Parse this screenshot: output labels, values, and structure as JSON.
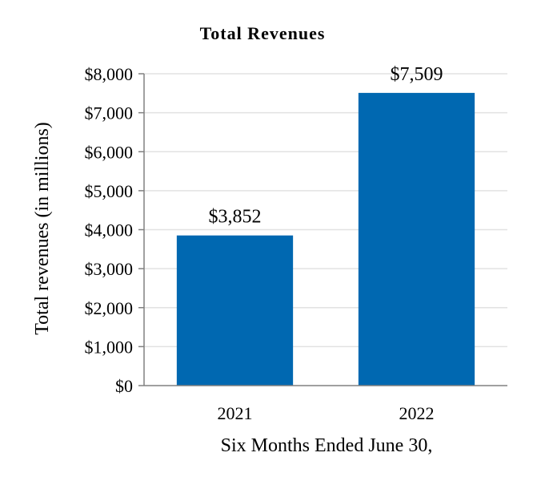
{
  "chart_data": {
    "type": "bar",
    "title": "Total Revenues",
    "xlabel": "Six Months Ended June 30,",
    "ylabel": "Total revenues (in millions)",
    "categories": [
      "2021",
      "2022"
    ],
    "values": [
      3852,
      7509
    ],
    "data_labels": [
      "$3,852",
      "$7,509"
    ],
    "ylim": [
      0,
      8000
    ],
    "y_ticks": [
      0,
      1000,
      2000,
      3000,
      4000,
      5000,
      6000,
      7000,
      8000
    ],
    "y_tick_labels": [
      "$0",
      "$1,000",
      "$2,000",
      "$3,000",
      "$4,000",
      "$5,000",
      "$6,000",
      "$7,000",
      "$8,000"
    ],
    "grid": true,
    "legend": "none",
    "bar_color": "#0068B1",
    "grid_color": "#E2E2E2",
    "axis_color": "#808080"
  }
}
